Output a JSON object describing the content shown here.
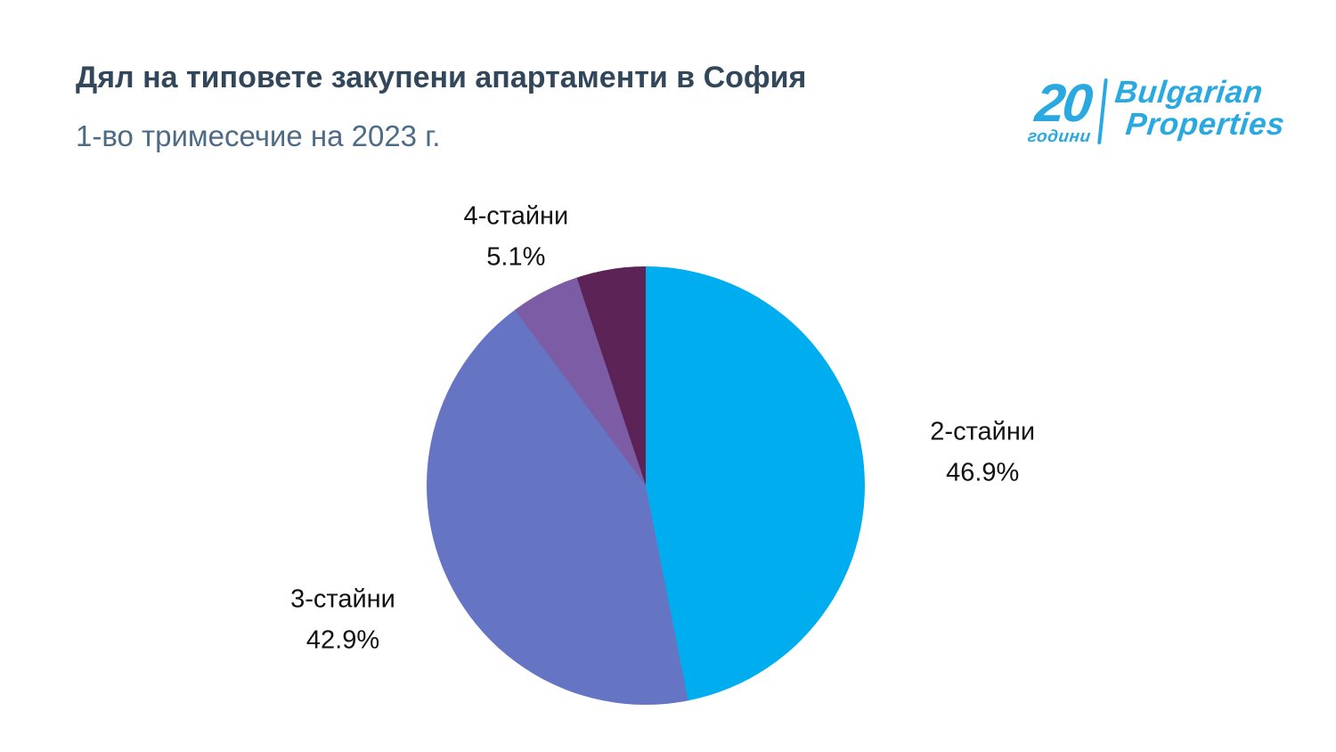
{
  "page": {
    "background": "#ffffff"
  },
  "header": {
    "title": "Дял на типовете закупени апартаменти в София",
    "subtitle": "1-во тримесечие на 2023 г."
  },
  "logo": {
    "years_number": "20",
    "years_label": "години",
    "brand_line1": "Bulgarian",
    "brand_line2": "Properties",
    "color": "#29a9e0"
  },
  "chart_data": {
    "type": "pie",
    "title": "Дял на типовете закупени апартаменти в София",
    "subtitle": "1-во тримесечие на 2023 г.",
    "direction": "clockwise",
    "start_angle_deg": 0,
    "legend": "none",
    "label_format": "{label} {value}%",
    "slices": [
      {
        "label": "2-стайни",
        "value": 46.9,
        "color": "#00aeef",
        "show_label": true,
        "label_distance": 380
      },
      {
        "label": "3-стайни",
        "value": 42.9,
        "color": "#6674c4",
        "show_label": true,
        "label_distance": 372
      },
      {
        "label": "4-стайни",
        "value": 5.1,
        "color": "#7d5ca6",
        "show_label": true,
        "label_distance": 315
      },
      {
        "label": "",
        "value": 5.1,
        "color": "#5c2456",
        "show_label": false,
        "label_distance": 0
      }
    ]
  }
}
